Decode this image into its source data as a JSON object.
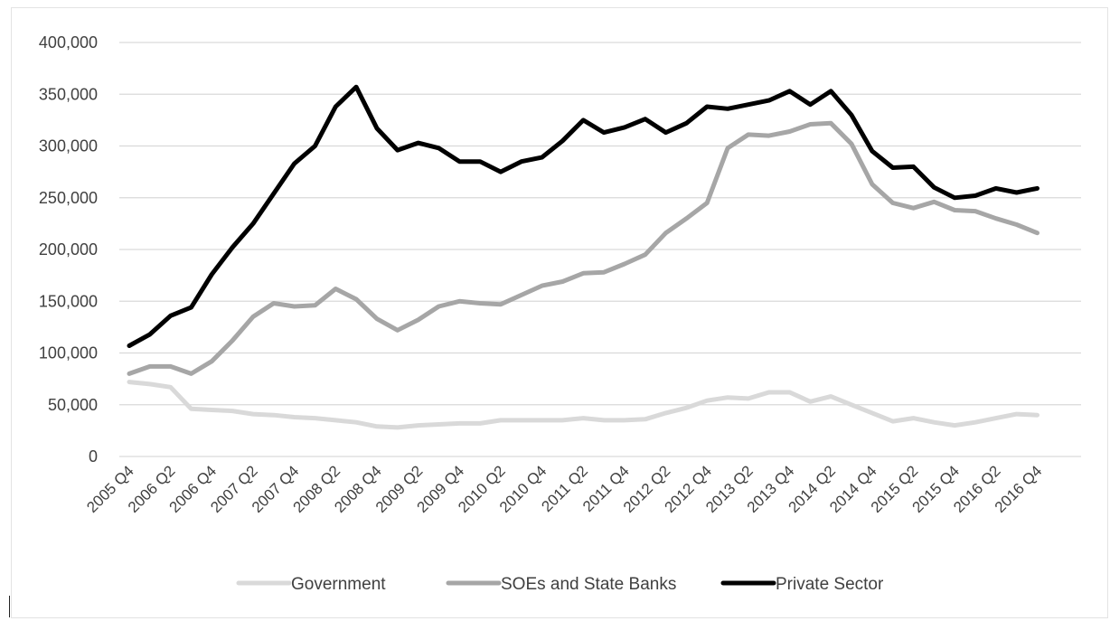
{
  "chart_data": {
    "type": "line",
    "title": "",
    "xlabel": "",
    "ylabel": "",
    "ylim": [
      0,
      400000
    ],
    "yticks": [
      0,
      50000,
      100000,
      150000,
      200000,
      250000,
      300000,
      350000,
      400000
    ],
    "ytick_labels": [
      "0",
      "50,000",
      "100,000",
      "150,000",
      "200,000",
      "250,000",
      "300,000",
      "350,000",
      "400,000"
    ],
    "x": [
      "2005 Q4",
      "2006 Q1",
      "2006 Q2",
      "2006 Q3",
      "2006 Q4",
      "2007 Q1",
      "2007 Q2",
      "2007 Q3",
      "2007 Q4",
      "2008 Q1",
      "2008 Q2",
      "2008 Q3",
      "2008 Q4",
      "2009 Q1",
      "2009 Q2",
      "2009 Q3",
      "2009 Q4",
      "2010 Q1",
      "2010 Q2",
      "2010 Q3",
      "2010 Q4",
      "2011 Q1",
      "2011 Q2",
      "2011 Q3",
      "2011 Q4",
      "2012 Q1",
      "2012 Q2",
      "2012 Q3",
      "2012 Q4",
      "2013 Q1",
      "2013 Q2",
      "2013 Q3",
      "2013 Q4",
      "2014 Q1",
      "2014 Q2",
      "2014 Q3",
      "2014 Q4",
      "2015 Q1",
      "2015 Q2",
      "2015 Q3",
      "2015 Q4",
      "2016 Q1",
      "2016 Q2",
      "2016 Q3",
      "2016 Q4"
    ],
    "xtick_labels": [
      "2005 Q4",
      "2006 Q2",
      "2006 Q4",
      "2007 Q2",
      "2007 Q4",
      "2008 Q2",
      "2008 Q4",
      "2009 Q2",
      "2009 Q4",
      "2010 Q2",
      "2010 Q4",
      "2011 Q2",
      "2011 Q4",
      "2012 Q2",
      "2012 Q4",
      "2013 Q2",
      "2013 Q4",
      "2014 Q2",
      "2014 Q4",
      "2015 Q2",
      "2015 Q4",
      "2016 Q2",
      "2016 Q4"
    ],
    "grid": "horizontal",
    "legend_position": "bottom",
    "series": [
      {
        "name": "Government",
        "color": "#d9d9d9",
        "values": [
          72000,
          70000,
          67000,
          46000,
          45000,
          44000,
          41000,
          40000,
          38000,
          37000,
          35000,
          33000,
          29000,
          28000,
          30000,
          31000,
          32000,
          32000,
          35000,
          35000,
          35000,
          35000,
          37000,
          35000,
          35000,
          36000,
          42000,
          47000,
          54000,
          57000,
          56000,
          62000,
          62000,
          53000,
          58000,
          50000,
          42000,
          34000,
          37000,
          33000,
          30000,
          33000,
          37000,
          41000,
          40000
        ]
      },
      {
        "name": "SOEs and State Banks",
        "color": "#a6a6a6",
        "values": [
          80000,
          87000,
          87000,
          80000,
          92000,
          112000,
          135000,
          148000,
          145000,
          146000,
          162000,
          152000,
          133000,
          122000,
          132000,
          145000,
          150000,
          148000,
          147000,
          156000,
          165000,
          169000,
          177000,
          178000,
          186000,
          195000,
          216000,
          230000,
          245000,
          298000,
          311000,
          310000,
          314000,
          321000,
          322000,
          302000,
          263000,
          245000,
          240000,
          246000,
          238000,
          237000,
          230000,
          224000,
          216000
        ]
      },
      {
        "name": "Private Sector",
        "color": "#000000",
        "values": [
          107000,
          118000,
          136000,
          144000,
          176000,
          202000,
          225000,
          254000,
          283000,
          300000,
          338000,
          357000,
          317000,
          296000,
          303000,
          298000,
          285000,
          285000,
          275000,
          285000,
          289000,
          305000,
          325000,
          313000,
          318000,
          326000,
          313000,
          322000,
          338000,
          336000,
          340000,
          344000,
          353000,
          340000,
          353000,
          330000,
          295000,
          279000,
          280000,
          260000,
          250000,
          252000,
          259000,
          255000,
          259000
        ]
      }
    ]
  }
}
